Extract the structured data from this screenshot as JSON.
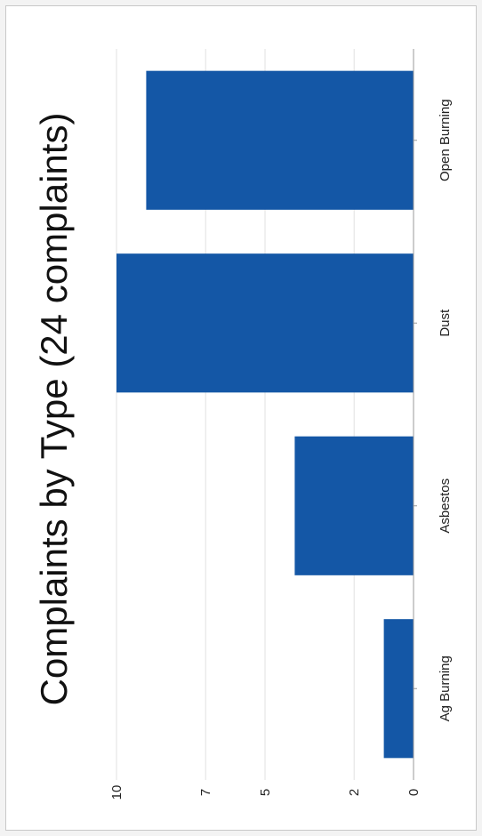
{
  "chart_data": {
    "type": "bar",
    "orientation": "rotated",
    "title": "Complaints by Type (24 complaints)",
    "categories": [
      "Ag Burning",
      "Asbestos",
      "Dust",
      "Open Burning"
    ],
    "values": [
      1,
      4,
      10,
      9
    ],
    "y_ticks": [
      0,
      2,
      5,
      7,
      10
    ],
    "ylim": [
      0,
      10
    ],
    "xlabel": "",
    "ylabel": "",
    "grid": true,
    "bar_color": "#1457a6"
  }
}
